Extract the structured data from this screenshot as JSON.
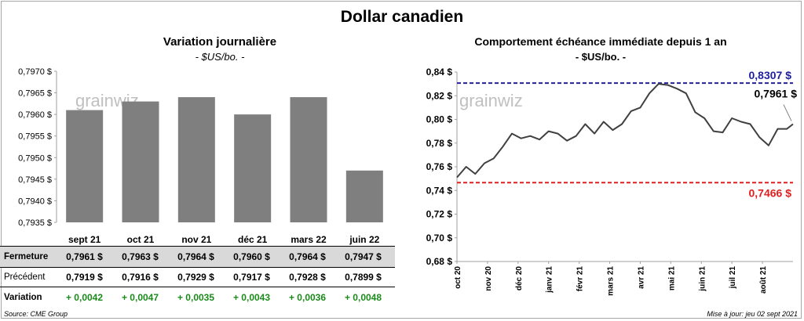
{
  "title": "Dollar canadien",
  "left_panel": {
    "title": "Variation  journalière",
    "unit": "- $US/bo. -",
    "watermark": "grainwiz"
  },
  "right_panel": {
    "title": "Comportement échéance immédiate depuis 1 an",
    "unit": "- $US/bo. -",
    "watermark": "grainwiz",
    "high_label": "0,8307 $",
    "low_label": "0,7466 $",
    "last_label": "0,7961 $"
  },
  "table": {
    "rows": [
      {
        "label": "Fermeture",
        "values": [
          "0,7961  $",
          "0,7963  $",
          "0,7964  $",
          "0,7960  $",
          "0,7964  $",
          "0,7947  $"
        ]
      },
      {
        "label": "Précédent",
        "values": [
          "0,7919  $",
          "0,7916  $",
          "0,7929  $",
          "0,7917  $",
          "0,7928  $",
          "0,7899  $"
        ]
      },
      {
        "label": "Variation",
        "values": [
          "+ 0,0042",
          "+ 0,0047",
          "+ 0,0035",
          "+ 0,0043",
          "+ 0,0036",
          "+ 0,0048"
        ]
      }
    ]
  },
  "footer": {
    "source": "Source: CME Group",
    "updated": "Mise à jour: jeu 02 sept 2021"
  },
  "colors": {
    "bar": "#7f7f7f",
    "line": "#404040",
    "high": "#1f1f9f",
    "low": "#e02020",
    "variation": "#1a8a1a",
    "table_band": "#d9d9d9"
  },
  "chart_data": [
    {
      "type": "bar",
      "title": "Variation  journalière",
      "subtitle": "- $US/bo. -",
      "categories": [
        "sept 21",
        "oct 21",
        "nov 21",
        "déc 21",
        "mars 22",
        "juin 22"
      ],
      "values": [
        0.7961,
        0.7963,
        0.7964,
        0.796,
        0.7964,
        0.7947
      ],
      "ylim": [
        0.7935,
        0.797
      ],
      "yticks": [
        "0,7935 $",
        "0,7940 $",
        "0,7945 $",
        "0,7950 $",
        "0,7955 $",
        "0,7960 $",
        "0,7965 $",
        "0,7970 $"
      ],
      "grid": false
    },
    {
      "type": "line",
      "title": "Comportement échéance immédiate depuis 1 an",
      "subtitle": "- $US/bo. -",
      "ylim": [
        0.68,
        0.84
      ],
      "yticks": [
        "0,68 $",
        "0,70 $",
        "0,72 $",
        "0,74 $",
        "0,76 $",
        "0,78 $",
        "0,80 $",
        "0,82 $",
        "0,84 $"
      ],
      "xticks": [
        "oct 20",
        "nov 20",
        "déc 20",
        "janv 21",
        "févr 21",
        "mars 21",
        "avr 21",
        "mai 21",
        "juin 21",
        "juil 21",
        "août 21"
      ],
      "x_month_index": [
        0,
        0.3,
        0.6,
        0.9,
        1.2,
        1.5,
        1.8,
        2.1,
        2.4,
        2.7,
        3.0,
        3.3,
        3.6,
        3.9,
        4.2,
        4.5,
        4.8,
        5.1,
        5.4,
        5.7,
        6.0,
        6.3,
        6.6,
        6.9,
        7.2,
        7.5,
        7.8,
        8.1,
        8.4,
        8.7,
        9.0,
        9.3,
        9.6,
        9.9,
        10.2,
        10.5,
        10.8,
        11.0
      ],
      "y": [
        0.751,
        0.76,
        0.754,
        0.763,
        0.767,
        0.777,
        0.788,
        0.784,
        0.786,
        0.783,
        0.79,
        0.788,
        0.782,
        0.786,
        0.796,
        0.788,
        0.798,
        0.791,
        0.796,
        0.807,
        0.81,
        0.822,
        0.83,
        0.829,
        0.826,
        0.822,
        0.806,
        0.801,
        0.79,
        0.789,
        0.801,
        0.798,
        0.796,
        0.785,
        0.778,
        0.792,
        0.792,
        0.796
      ],
      "high": 0.8307,
      "low": 0.7466,
      "last": 0.7961,
      "grid": false
    }
  ]
}
